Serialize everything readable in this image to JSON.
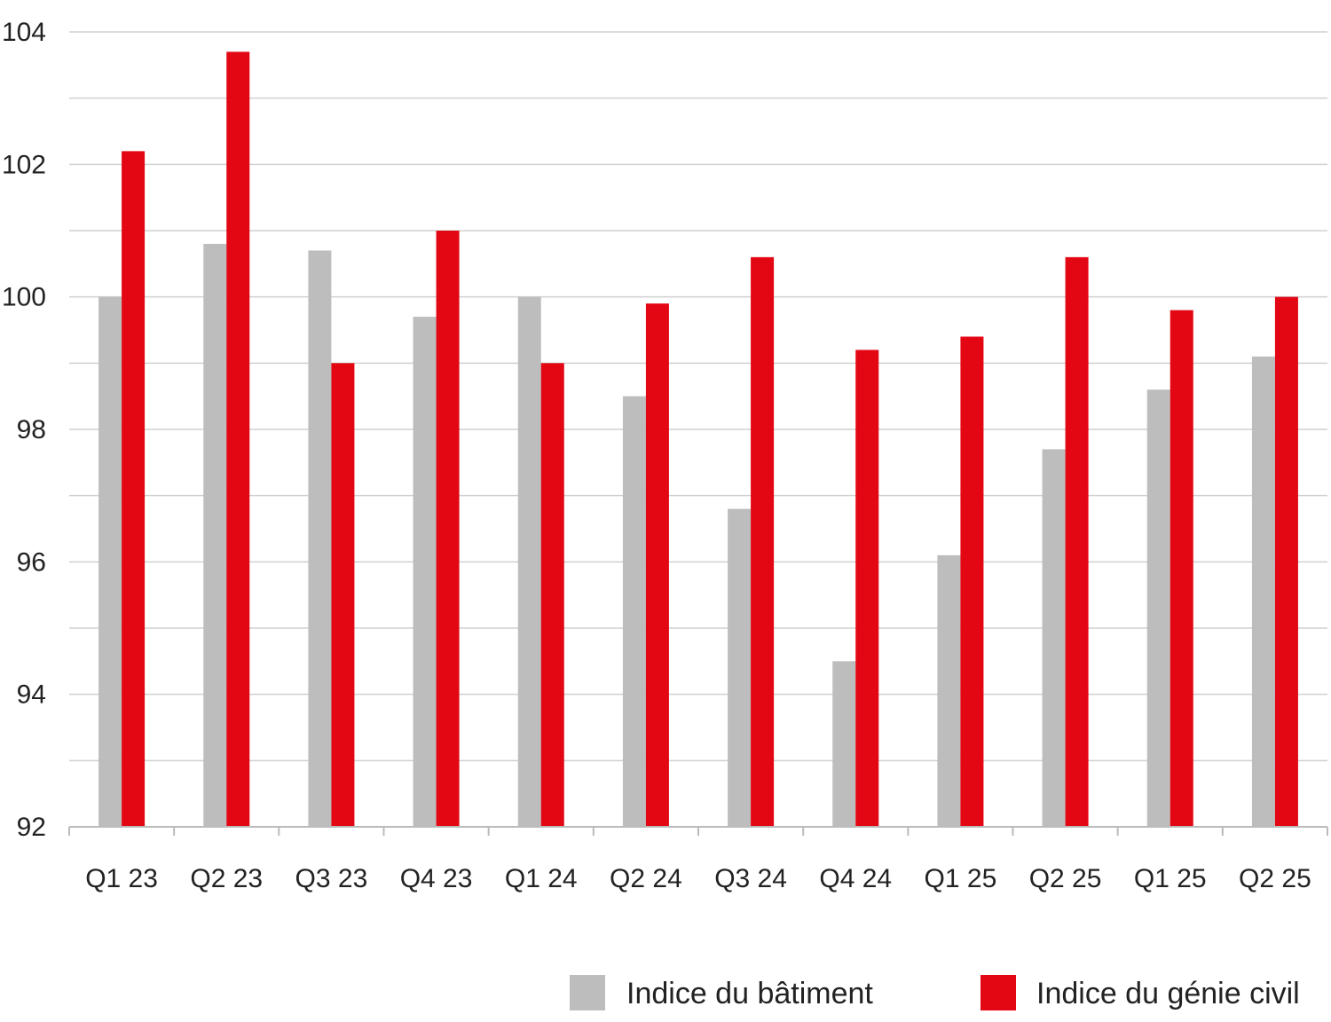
{
  "chart_data": {
    "type": "bar",
    "title": "",
    "xlabel": "",
    "ylabel": "",
    "categories": [
      "Q1 23",
      "Q2 23",
      "Q3 23",
      "Q4 23",
      "Q1 24",
      "Q2 24",
      "Q3 24",
      "Q4 24",
      "Q1 25",
      "Q2 25",
      "Q1 25",
      "Q2 25"
    ],
    "series": [
      {
        "name": "Indice du bâtiment",
        "color": "#bdbdbd",
        "values": [
          100.0,
          100.8,
          100.7,
          99.7,
          100.0,
          98.5,
          96.8,
          94.5,
          96.1,
          97.7,
          98.6,
          99.1
        ]
      },
      {
        "name": "Indice du génie civil",
        "color": "#e30613",
        "values": [
          102.2,
          103.7,
          99.0,
          101.0,
          99.0,
          99.9,
          100.6,
          99.2,
          99.4,
          100.6,
          99.8,
          100.0
        ]
      }
    ],
    "ylim": [
      92,
      104
    ],
    "yticks": [
      "92",
      "94",
      "96",
      "98",
      "100",
      "102",
      "104"
    ],
    "grid": true,
    "legend": "bottom-right",
    "colors": {
      "grid": "#d0d0d0",
      "axis": "#bbbbbb",
      "text": "#222222"
    }
  }
}
